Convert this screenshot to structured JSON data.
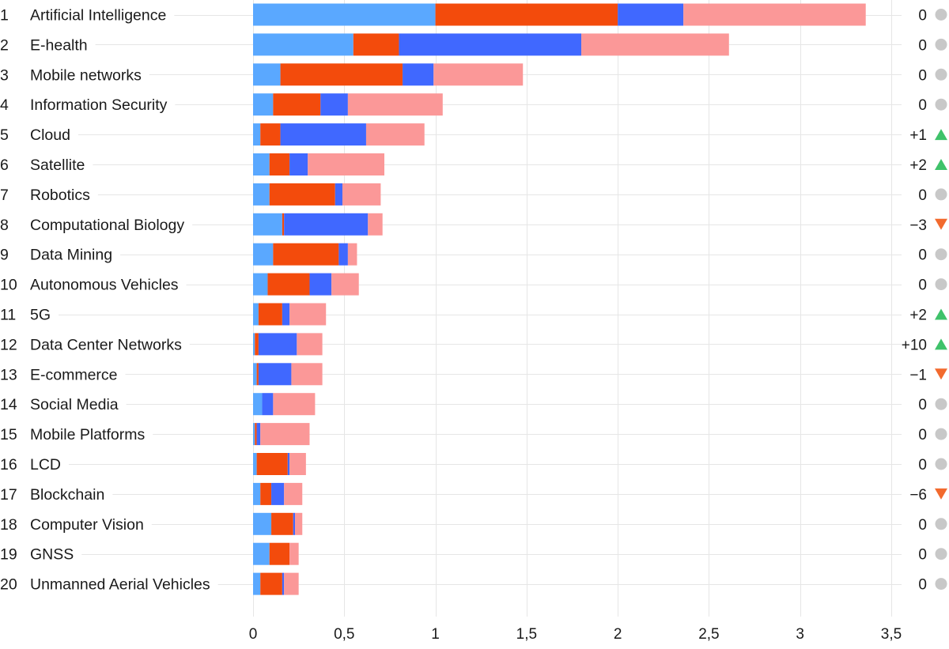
{
  "chart_data": {
    "type": "bar",
    "orientation": "horizontal",
    "stacked": true,
    "xlim": [
      0,
      3.5
    ],
    "x_ticks": [
      "0",
      "0,5",
      "1",
      "1,5",
      "2",
      "2,5",
      "3",
      "3,5"
    ],
    "x_tick_values": [
      0,
      0.5,
      1,
      1.5,
      2,
      2.5,
      3,
      3.5
    ],
    "grid": true,
    "legend": "none",
    "ranks": [
      "1",
      "2",
      "3",
      "4",
      "5",
      "6",
      "7",
      "8",
      "9",
      "10",
      "11",
      "12",
      "13",
      "14",
      "15",
      "16",
      "17",
      "18",
      "19",
      "20"
    ],
    "categories": [
      "Artificial Intelligence",
      "E-health",
      "Mobile networks",
      "Information Security",
      "Cloud",
      "Satellite",
      "Robotics",
      "Computational Biology",
      "Data Mining",
      "Autonomous Vehicles",
      "5G",
      "Data Center Networks",
      "E-commerce",
      "Social Media",
      "Mobile Platforms",
      "LCD",
      "Blockchain",
      "Computer Vision",
      "GNSS",
      "Unmanned Aerial Vehicles"
    ],
    "series": [
      {
        "color": "#5aa8ff",
        "values": [
          1.0,
          0.55,
          0.15,
          0.11,
          0.04,
          0.09,
          0.09,
          0.16,
          0.11,
          0.08,
          0.03,
          0.01,
          0.02,
          0.05,
          0.01,
          0.02,
          0.04,
          0.1,
          0.09,
          0.04
        ]
      },
      {
        "color": "#f34b0c",
        "values": [
          1.0,
          0.25,
          0.67,
          0.26,
          0.11,
          0.11,
          0.36,
          0.01,
          0.36,
          0.23,
          0.13,
          0.02,
          0.01,
          0.0,
          0.01,
          0.17,
          0.06,
          0.12,
          0.11,
          0.12
        ]
      },
      {
        "color": "#4068ff",
        "values": [
          0.36,
          1.0,
          0.17,
          0.15,
          0.47,
          0.1,
          0.04,
          0.46,
          0.05,
          0.12,
          0.04,
          0.21,
          0.18,
          0.06,
          0.02,
          0.01,
          0.07,
          0.01,
          0.0,
          0.01
        ]
      },
      {
        "color": "#fb9898",
        "values": [
          1.0,
          0.81,
          0.49,
          0.52,
          0.32,
          0.42,
          0.21,
          0.08,
          0.05,
          0.15,
          0.2,
          0.14,
          0.17,
          0.23,
          0.27,
          0.09,
          0.1,
          0.04,
          0.05,
          0.08
        ]
      }
    ],
    "changes": [
      "0",
      "0",
      "0",
      "0",
      "+1",
      "+2",
      "0",
      "-3",
      "0",
      "0",
      "+2",
      "+10",
      "-1",
      "0",
      "0",
      "0",
      "-6",
      "0",
      "0",
      "0"
    ],
    "change_directions": [
      "same",
      "same",
      "same",
      "same",
      "up",
      "up",
      "same",
      "down",
      "same",
      "same",
      "up",
      "up",
      "down",
      "same",
      "same",
      "same",
      "down",
      "same",
      "same",
      "same"
    ],
    "indicator_colors": {
      "up": "#3fc26a",
      "down": "#f26a2e",
      "same": "#c8c8c8"
    }
  }
}
